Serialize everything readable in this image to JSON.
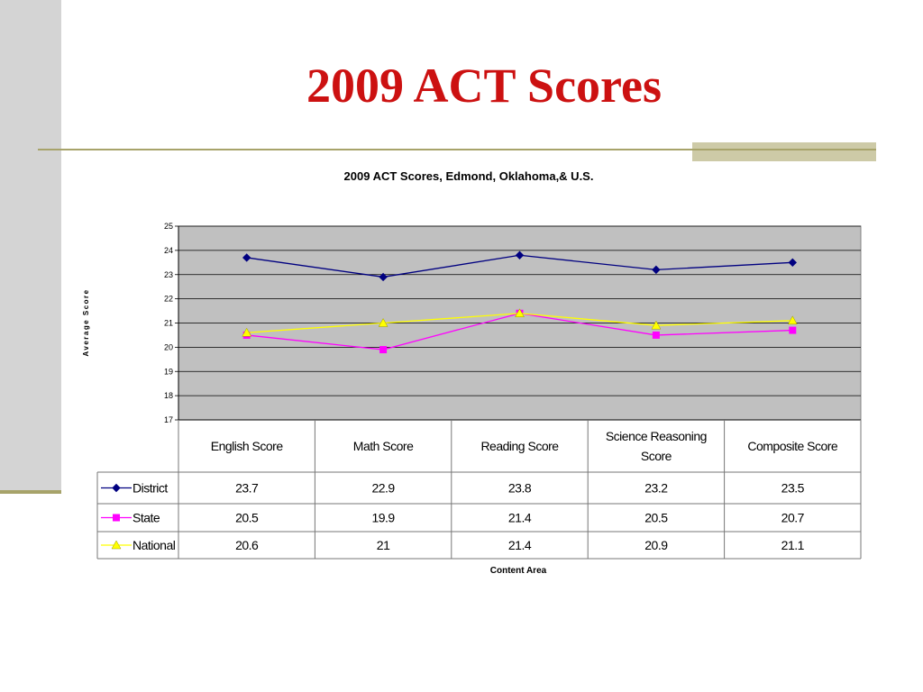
{
  "slide": {
    "title": "2009 ACT Scores"
  },
  "colors": {
    "title": "#cc1111",
    "plot_background": "#c0c0c0",
    "accent_rule": "#a7a36a"
  },
  "chart_data": {
    "type": "line",
    "title": "2009 ACT Scores, Edmond, Oklahoma,&  U.S.",
    "xlabel": "Content Area",
    "ylabel": "Average Score",
    "ylim": [
      17,
      25
    ],
    "yticks": [
      17,
      18,
      19,
      20,
      21,
      22,
      23,
      24,
      25
    ],
    "grid": true,
    "legend_placement": "data-table-left",
    "categories": [
      "English Score",
      "Math Score",
      "Reading Score",
      "Science Reasoning Score",
      "Composite Score"
    ],
    "series": [
      {
        "name": "District",
        "values": [
          23.7,
          22.9,
          23.8,
          23.2,
          23.5
        ],
        "value_labels": [
          "23.7",
          "22.9",
          "23.8",
          "23.2",
          "23.5"
        ],
        "color": "#000080",
        "marker": "diamond"
      },
      {
        "name": "State",
        "values": [
          20.5,
          19.9,
          21.4,
          20.5,
          20.7
        ],
        "value_labels": [
          "20.5",
          "19.9",
          "21.4",
          "20.5",
          "20.7"
        ],
        "color": "#ff00ff",
        "marker": "square"
      },
      {
        "name": "National",
        "values": [
          20.6,
          21,
          21.4,
          20.9,
          21.1
        ],
        "value_labels": [
          "20.6",
          "21",
          "21.4",
          "20.9",
          "21.1"
        ],
        "color": "#ffff00",
        "marker": "triangle"
      }
    ]
  }
}
